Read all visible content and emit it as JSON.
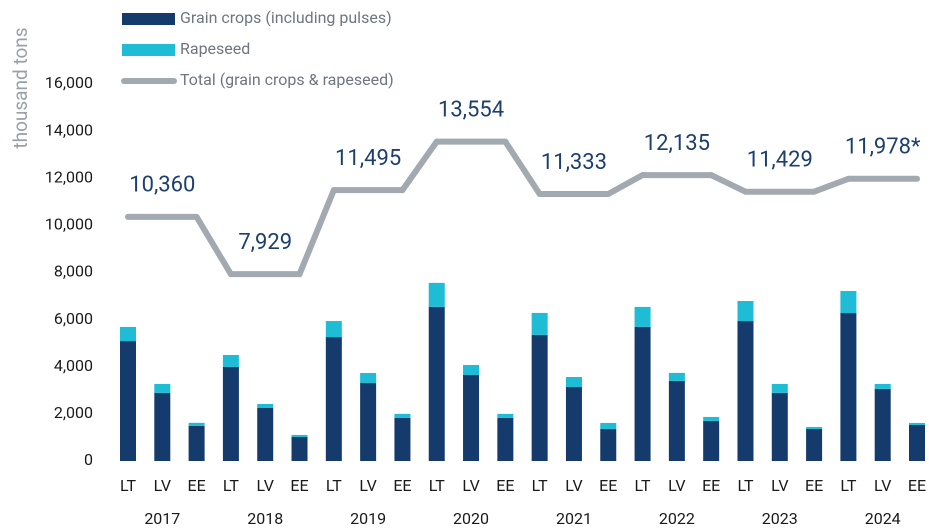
{
  "chart_data": {
    "type": "stacked-bar-line",
    "y_label": "thousand tons",
    "categories": [
      "LT",
      "LV",
      "EE",
      "LT",
      "LV",
      "EE",
      "LT",
      "LV",
      "EE",
      "LT",
      "LV",
      "EE",
      "LT",
      "LV",
      "EE",
      "LT",
      "LV",
      "EE",
      "LT",
      "LV",
      "EE",
      "LT",
      "LV",
      "EE"
    ],
    "groups": [
      "2017",
      "2018",
      "2019",
      "2020",
      "2021",
      "2022",
      "2023",
      "2024"
    ],
    "series": [
      {
        "name": "Grain crops (including pulses)",
        "color": "#143b6c",
        "values": [
          5090,
          2890,
          1490,
          3990,
          2250,
          1020,
          5260,
          3310,
          1830,
          6540,
          3650,
          1830,
          5350,
          3140,
          1360,
          5690,
          3400,
          1700,
          5940,
          2890,
          1360,
          6280,
          3060,
          1530
        ]
      },
      {
        "name": "Rapeseed",
        "color": "#1fbcd6",
        "values": [
          600,
          380,
          130,
          510,
          170,
          85,
          680,
          425,
          170,
          1020,
          425,
          170,
          935,
          425,
          255,
          850,
          340,
          170,
          850,
          380,
          85,
          935,
          210,
          85
        ]
      }
    ],
    "total": {
      "name": "Total (grain crops & rapeseed)",
      "color": "#a3a9b1",
      "values": [
        10360,
        7929,
        11495,
        13554,
        11333,
        12135,
        11429,
        11978
      ],
      "value_labels": [
        "10,360",
        "7,929",
        "11,495",
        "13,554",
        "11,333",
        "12,135",
        "11,429",
        "11,978*"
      ]
    },
    "ylim": [
      0,
      16000
    ],
    "yticks": [
      0,
      {
        "value": 2000,
        "label": "2,000"
      },
      {
        "value": 4000,
        "label": "4,000"
      },
      {
        "value": 6000,
        "label": "6,000"
      },
      {
        "value": 8000,
        "label": "8,000"
      },
      {
        "value": 10000,
        "label": "10,000"
      },
      {
        "value": 12000,
        "label": "12,000"
      },
      {
        "value": 14000,
        "label": "14,000"
      },
      {
        "value": 16000,
        "label": "16,000"
      }
    ]
  }
}
